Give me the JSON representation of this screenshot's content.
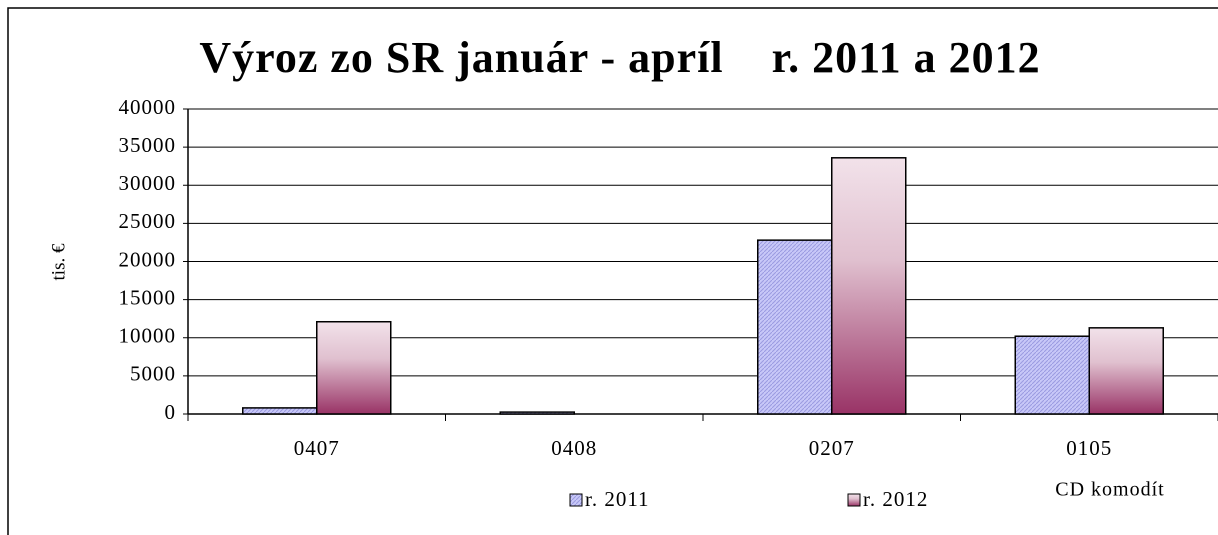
{
  "chart_data": {
    "type": "bar",
    "title": "Výroz zo SR január - apríl    r. 2011 a 2012",
    "y_label": "tis. €",
    "x_label": "CD komodít",
    "categories": [
      "0407",
      "0408",
      "0207",
      "0105"
    ],
    "series": [
      {
        "name": "r. 2011",
        "color": "#c8c8f8",
        "values": [
          800,
          250,
          22800,
          10200
        ]
      },
      {
        "name": "r. 2012",
        "color": "#993366",
        "values": [
          12100,
          0,
          33600,
          11300
        ]
      }
    ],
    "ylim": [
      0,
      40000
    ],
    "yticks": [
      0,
      5000,
      10000,
      15000,
      20000,
      25000,
      30000,
      35000,
      40000
    ],
    "grid": true
  }
}
